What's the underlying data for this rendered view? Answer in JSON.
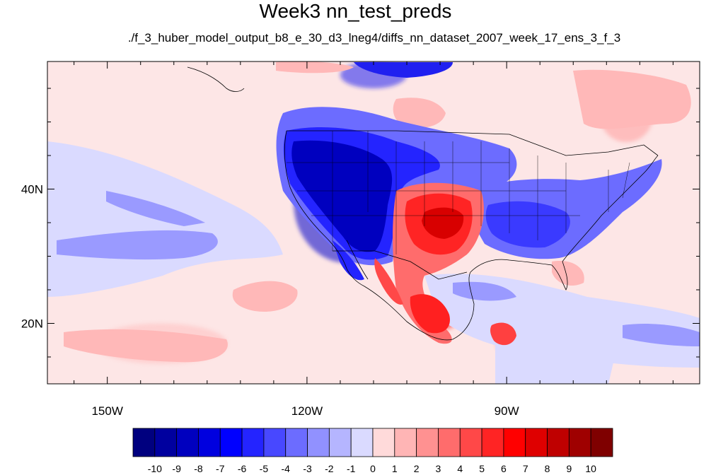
{
  "title": "Week3 nn_test_preds",
  "subtitle": "./f_3_huber_model_output_b8_e_30_d3_lneg4/diffs_nn_dataset_2007_week_17_ens_3_f_3",
  "map": {
    "projection": "cylindrical-equidistant",
    "lon_range": [
      -159,
      -61
    ],
    "lat_range": [
      11,
      59
    ],
    "lon_ticks": [
      {
        "value": -150,
        "label": "150W"
      },
      {
        "value": -120,
        "label": "120W"
      },
      {
        "value": -90,
        "label": "90W"
      }
    ],
    "lat_ticks": [
      {
        "value": 40,
        "label": "40N"
      },
      {
        "value": 20,
        "label": "20N"
      }
    ],
    "background_color": "#fde6e6"
  },
  "colorbar": {
    "labels": [
      "-10",
      "-9",
      "-8",
      "-7",
      "-6",
      "-5",
      "-4",
      "-3",
      "-2",
      "-1",
      "0",
      "1",
      "2",
      "3",
      "4",
      "5",
      "6",
      "7",
      "8",
      "9",
      "10"
    ],
    "colors": [
      "#00007f",
      "#00009f",
      "#0000bf",
      "#0000df",
      "#0000ff",
      "#2424ff",
      "#4848ff",
      "#6c6cff",
      "#9191ff",
      "#b5b5ff",
      "#dadaff",
      "#ffdada",
      "#ffb5b5",
      "#ff9191",
      "#ff6c6c",
      "#ff4848",
      "#ff2424",
      "#ff0000",
      "#df0000",
      "#bf0000",
      "#9f0000",
      "#7f0000"
    ]
  },
  "anomaly_regions": [
    {
      "value": -9,
      "color": "#0000c8",
      "lon": -114,
      "lat": 38,
      "rlon": 8,
      "rlat": 9
    },
    {
      "value": -8,
      "color": "#1010e0",
      "lon": -118,
      "lat": 43,
      "rlon": 5,
      "rlat": 4
    },
    {
      "value": 7,
      "color": "#ff0000",
      "lon": -101,
      "lat": 35,
      "rlon": 6,
      "rlat": 4
    },
    {
      "value": 8,
      "color": "#d80000",
      "lon": -100,
      "lat": 35,
      "rlon": 3,
      "rlat": 2
    },
    {
      "value": 6,
      "color": "#ff2020",
      "lon": -100,
      "lat": 21,
      "rlon": 3,
      "rlat": 2
    },
    {
      "value": -5,
      "color": "#3a3aff",
      "lon": -89,
      "lat": 35,
      "rlon": 5,
      "rlat": 3
    },
    {
      "value": -4,
      "color": "#5a5aff",
      "lon": -82,
      "lat": 37,
      "rlon": 4,
      "rlat": 3
    },
    {
      "value": -6,
      "color": "#2020f0",
      "lon": -110,
      "lat": 57,
      "rlon": 5,
      "rlat": 2
    },
    {
      "value": 5,
      "color": "#ff4040",
      "lon": -90,
      "lat": 17,
      "rlon": 1.5,
      "rlat": 1.5
    },
    {
      "value": -3,
      "color": "#8a8aff",
      "lon": -145,
      "lat": 31,
      "rlon": 14,
      "rlat": 2
    },
    {
      "value": 3,
      "color": "#ff9a9a",
      "lon": -72,
      "lat": 51,
      "rlon": 4,
      "rlat": 4
    },
    {
      "value": 2,
      "color": "#ffc0c0",
      "lon": -142,
      "lat": 17,
      "rlon": 10,
      "rlat": 3
    }
  ]
}
